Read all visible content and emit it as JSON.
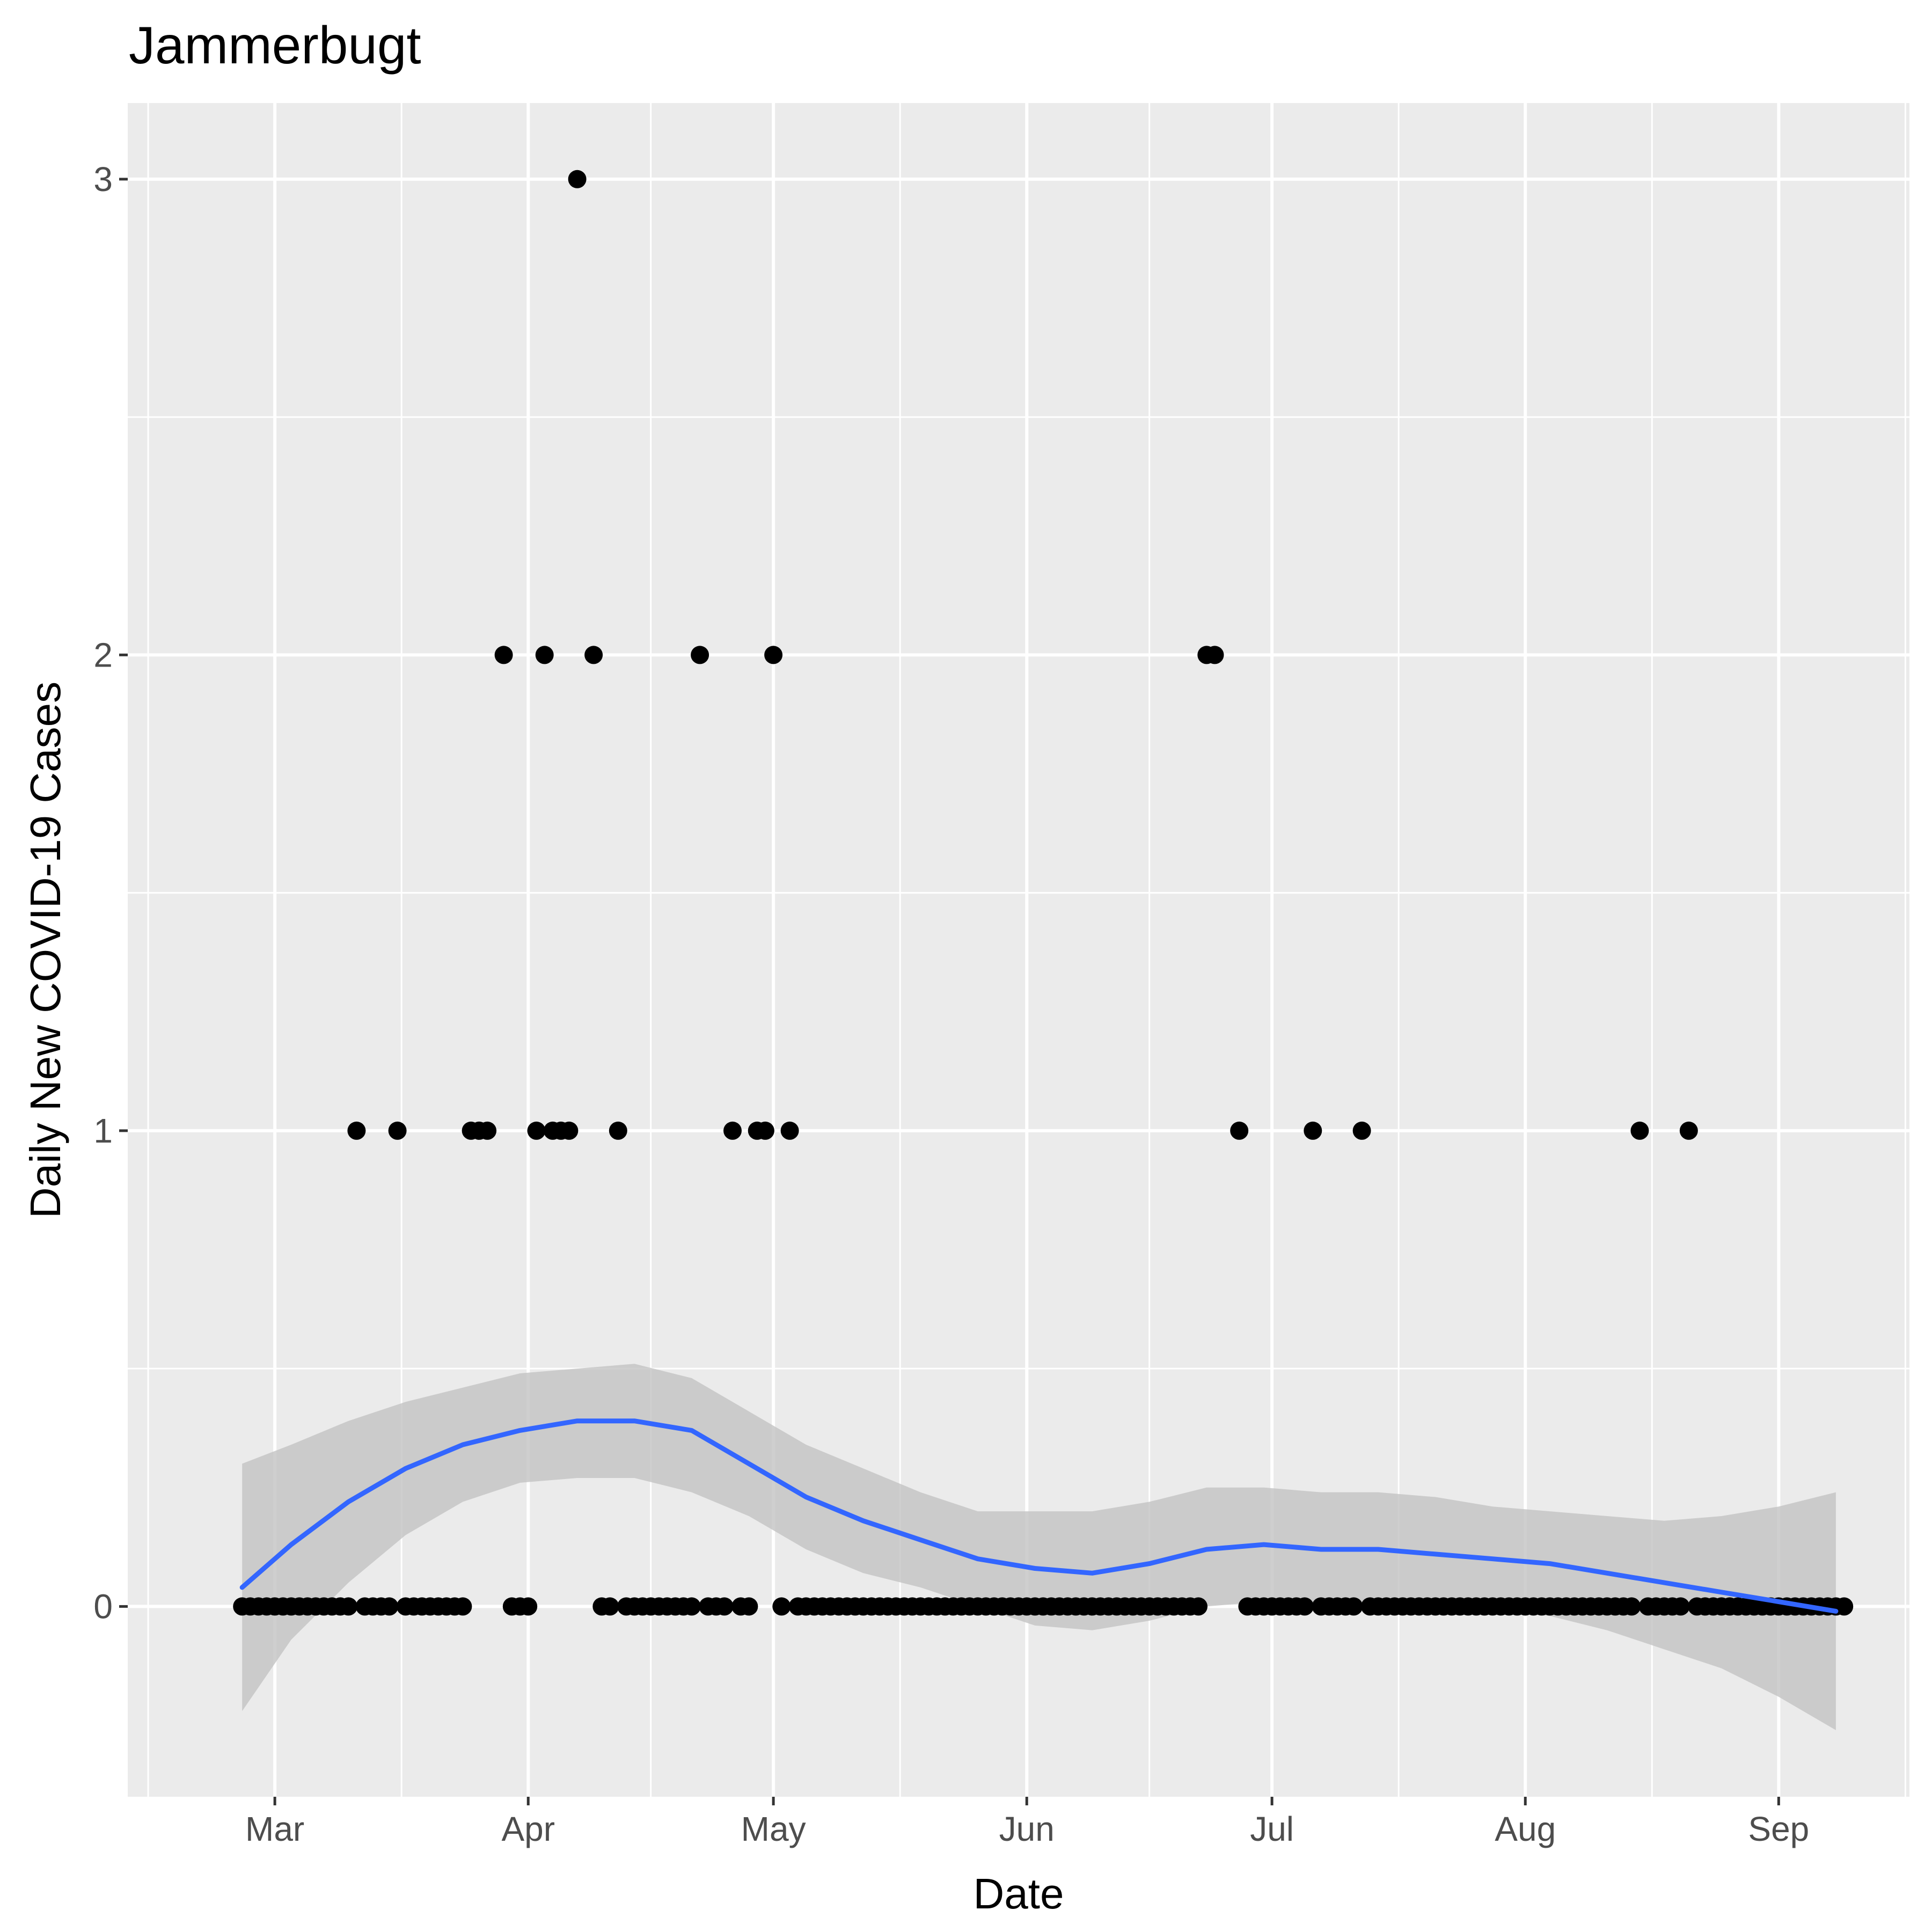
{
  "chart_data": {
    "type": "scatter",
    "title": "Jammerbugt",
    "xlabel": "Date",
    "ylabel": "Daily New COVID-19 Cases",
    "x_ticks": [
      {
        "date": "2020-03-01",
        "label": "Mar"
      },
      {
        "date": "2020-04-01",
        "label": "Apr"
      },
      {
        "date": "2020-05-01",
        "label": "May"
      },
      {
        "date": "2020-06-01",
        "label": "Jun"
      },
      {
        "date": "2020-07-01",
        "label": "Jul"
      },
      {
        "date": "2020-08-01",
        "label": "Aug"
      },
      {
        "date": "2020-09-01",
        "label": "Sep"
      }
    ],
    "y_ticks": [
      0,
      1,
      2,
      3
    ],
    "xlim": [
      "2020-02-12",
      "2020-09-17"
    ],
    "ylim": [
      -0.4,
      3.16
    ],
    "grid": true,
    "colors": {
      "panel": "#ebebeb",
      "grid": "#ffffff",
      "points": "#000000",
      "smooth_line": "#3366ff",
      "confidence_band": "#c2c2c2"
    },
    "points": {
      "start": "2020-02-26",
      "end": "2020-09-09",
      "default_value": 0,
      "nonzero": [
        {
          "date": "2020-03-11",
          "value": 1
        },
        {
          "date": "2020-03-16",
          "value": 1
        },
        {
          "date": "2020-03-25",
          "value": 1
        },
        {
          "date": "2020-03-26",
          "value": 1
        },
        {
          "date": "2020-03-27",
          "value": 1
        },
        {
          "date": "2020-03-29",
          "value": 2
        },
        {
          "date": "2020-04-02",
          "value": 1
        },
        {
          "date": "2020-04-03",
          "value": 2
        },
        {
          "date": "2020-04-04",
          "value": 1
        },
        {
          "date": "2020-04-05",
          "value": 1
        },
        {
          "date": "2020-04-06",
          "value": 1
        },
        {
          "date": "2020-04-07",
          "value": 3
        },
        {
          "date": "2020-04-09",
          "value": 2
        },
        {
          "date": "2020-04-12",
          "value": 1
        },
        {
          "date": "2020-04-22",
          "value": 2
        },
        {
          "date": "2020-04-26",
          "value": 1
        },
        {
          "date": "2020-04-29",
          "value": 1
        },
        {
          "date": "2020-04-30",
          "value": 1
        },
        {
          "date": "2020-05-01",
          "value": 2
        },
        {
          "date": "2020-05-03",
          "value": 1
        },
        {
          "date": "2020-06-23",
          "value": 2
        },
        {
          "date": "2020-06-24",
          "value": 2
        },
        {
          "date": "2020-06-27",
          "value": 1
        },
        {
          "date": "2020-07-06",
          "value": 1
        },
        {
          "date": "2020-07-12",
          "value": 1
        },
        {
          "date": "2020-08-15",
          "value": 1
        },
        {
          "date": "2020-08-21",
          "value": 1
        }
      ],
      "missing": [
        "2020-03-28",
        "2020-04-08",
        "2020-06-25",
        "2020-06-26"
      ]
    },
    "smooth": [
      {
        "date": "2020-02-26",
        "y": 0.04,
        "lo": -0.22,
        "hi": 0.3
      },
      {
        "date": "2020-03-03",
        "y": 0.13,
        "lo": -0.07,
        "hi": 0.34
      },
      {
        "date": "2020-03-10",
        "y": 0.22,
        "lo": 0.05,
        "hi": 0.39
      },
      {
        "date": "2020-03-17",
        "y": 0.29,
        "lo": 0.15,
        "hi": 0.43
      },
      {
        "date": "2020-03-24",
        "y": 0.34,
        "lo": 0.22,
        "hi": 0.46
      },
      {
        "date": "2020-03-31",
        "y": 0.37,
        "lo": 0.26,
        "hi": 0.49
      },
      {
        "date": "2020-04-07",
        "y": 0.39,
        "lo": 0.27,
        "hi": 0.5
      },
      {
        "date": "2020-04-14",
        "y": 0.39,
        "lo": 0.27,
        "hi": 0.51
      },
      {
        "date": "2020-04-21",
        "y": 0.37,
        "lo": 0.24,
        "hi": 0.48
      },
      {
        "date": "2020-04-28",
        "y": 0.3,
        "lo": 0.19,
        "hi": 0.41
      },
      {
        "date": "2020-05-05",
        "y": 0.23,
        "lo": 0.12,
        "hi": 0.34
      },
      {
        "date": "2020-05-12",
        "y": 0.18,
        "lo": 0.07,
        "hi": 0.29
      },
      {
        "date": "2020-05-19",
        "y": 0.14,
        "lo": 0.04,
        "hi": 0.24
      },
      {
        "date": "2020-05-26",
        "y": 0.1,
        "lo": 0.0,
        "hi": 0.2
      },
      {
        "date": "2020-06-02",
        "y": 0.08,
        "lo": -0.04,
        "hi": 0.2
      },
      {
        "date": "2020-06-09",
        "y": 0.07,
        "lo": -0.05,
        "hi": 0.2
      },
      {
        "date": "2020-06-16",
        "y": 0.09,
        "lo": -0.03,
        "hi": 0.22
      },
      {
        "date": "2020-06-23",
        "y": 0.12,
        "lo": 0.0,
        "hi": 0.25
      },
      {
        "date": "2020-06-30",
        "y": 0.13,
        "lo": 0.01,
        "hi": 0.25
      },
      {
        "date": "2020-07-07",
        "y": 0.12,
        "lo": 0.0,
        "hi": 0.24
      },
      {
        "date": "2020-07-14",
        "y": 0.12,
        "lo": 0.0,
        "hi": 0.24
      },
      {
        "date": "2020-07-21",
        "y": 0.11,
        "lo": 0.0,
        "hi": 0.23
      },
      {
        "date": "2020-07-28",
        "y": 0.1,
        "lo": -0.01,
        "hi": 0.21
      },
      {
        "date": "2020-08-04",
        "y": 0.09,
        "lo": -0.02,
        "hi": 0.2
      },
      {
        "date": "2020-08-11",
        "y": 0.07,
        "lo": -0.05,
        "hi": 0.19
      },
      {
        "date": "2020-08-18",
        "y": 0.05,
        "lo": -0.09,
        "hi": 0.18
      },
      {
        "date": "2020-08-25",
        "y": 0.03,
        "lo": -0.13,
        "hi": 0.19
      },
      {
        "date": "2020-09-01",
        "y": 0.01,
        "lo": -0.19,
        "hi": 0.21
      },
      {
        "date": "2020-09-08",
        "y": -0.01,
        "lo": -0.26,
        "hi": 0.24
      }
    ]
  }
}
